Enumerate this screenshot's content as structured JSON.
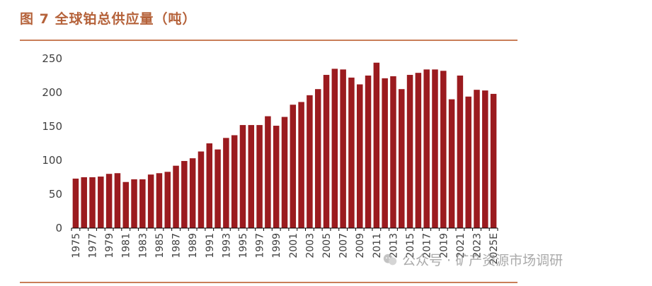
{
  "figure": {
    "title": "图 7 全球铂总供应量（吨）",
    "watermark": "公众号 · 矿产资源市场调研"
  },
  "colors": {
    "bar": "#9b1b1f",
    "title": "#b5623a",
    "rule": "#c97e58",
    "axis": "#000000",
    "tick_text": "#404040"
  },
  "chart_data": {
    "type": "bar",
    "title": "",
    "xlabel": "",
    "ylabel": "",
    "ylim": [
      0,
      250
    ],
    "yticks": [
      0,
      50,
      100,
      150,
      200,
      250
    ],
    "grid": false,
    "legend": "none",
    "categories": [
      "1975",
      "1976",
      "1977",
      "1978",
      "1979",
      "1980",
      "1981",
      "1982",
      "1983",
      "1984",
      "1985",
      "1986",
      "1987",
      "1988",
      "1989",
      "1990",
      "1991",
      "1992",
      "1993",
      "1994",
      "1995",
      "1996",
      "1997",
      "1998",
      "1999",
      "2000",
      "2001",
      "2002",
      "2003",
      "2004",
      "2005",
      "2006",
      "2007",
      "2008",
      "2009",
      "2010",
      "2011",
      "2012",
      "2013",
      "2014",
      "2015",
      "2016",
      "2017",
      "2018",
      "2019",
      "2020",
      "2021",
      "2022",
      "2023",
      "2024",
      "2025E"
    ],
    "tick_labels": [
      "1975",
      "1977",
      "1979",
      "1981",
      "1983",
      "1985",
      "1987",
      "1989",
      "1991",
      "1993",
      "1995",
      "1997",
      "1999",
      "2001",
      "2003",
      "2005",
      "2007",
      "2009",
      "2011",
      "2013",
      "2015",
      "2017",
      "2019",
      "2021",
      "2023",
      "2025E"
    ],
    "values": [
      73,
      75,
      75,
      76,
      80,
      81,
      68,
      72,
      72,
      79,
      81,
      83,
      92,
      99,
      103,
      113,
      125,
      116,
      133,
      137,
      152,
      152,
      152,
      165,
      151,
      164,
      182,
      186,
      196,
      205,
      226,
      235,
      234,
      222,
      212,
      225,
      244,
      221,
      224,
      205,
      226,
      229,
      234,
      234,
      232,
      190,
      225,
      194,
      204,
      203,
      198
    ]
  }
}
